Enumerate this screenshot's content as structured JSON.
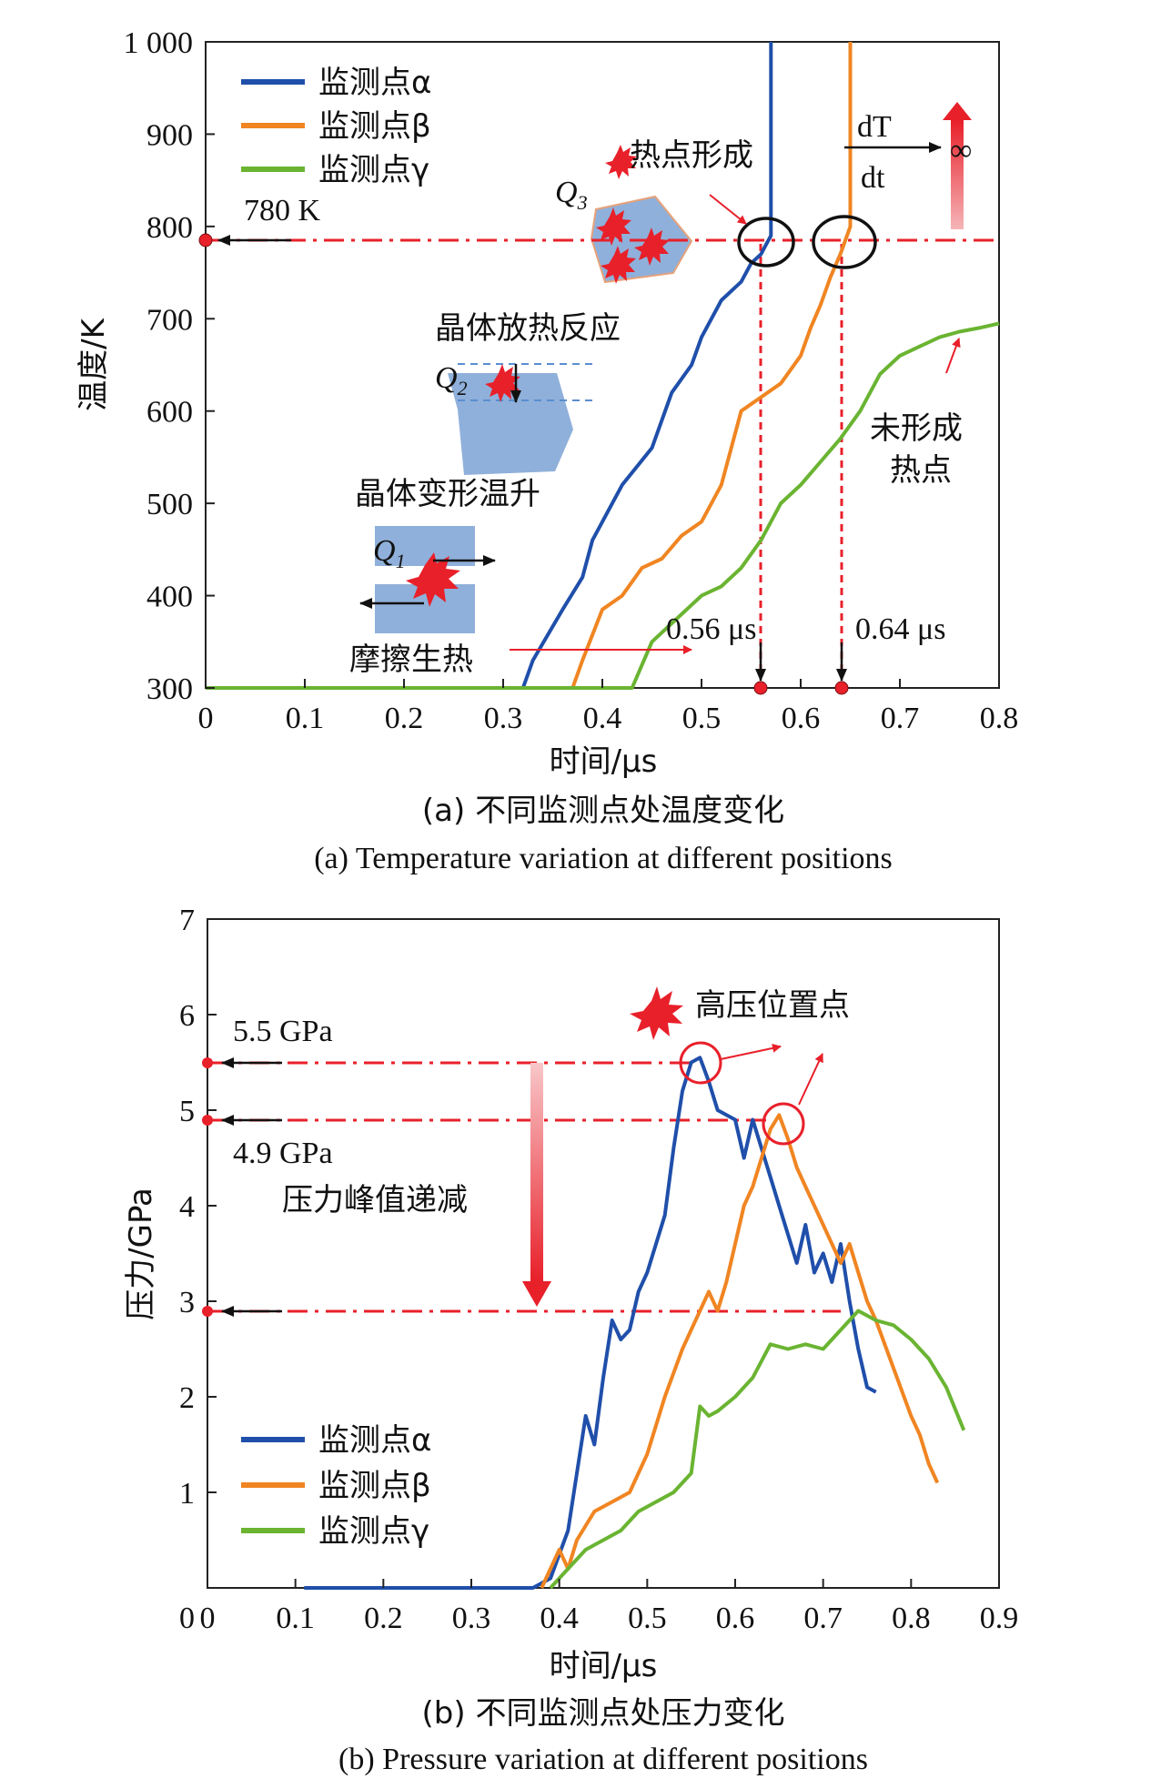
{
  "chart_data": [
    {
      "type": "line",
      "caption_cn": "(a) 不同监测点处温度变化",
      "caption_en": "(a) Temperature variation at different positions",
      "xlabel": "时间/μs",
      "ylabel": "温度/K",
      "xlim": [
        0,
        0.8
      ],
      "ylim": [
        300,
        1000
      ],
      "x_ticks": [
        "0",
        "0.1",
        "0.2",
        "0.3",
        "0.4",
        "0.5",
        "0.6",
        "0.7",
        "0.8"
      ],
      "y_ticks": [
        "300",
        "400",
        "500",
        "600",
        "700",
        "800",
        "900",
        "1 000"
      ],
      "legend_position": "top-left",
      "series": [
        {
          "name": "监测点α",
          "color": "#1f4faa",
          "x": [
            0,
            0.32,
            0.33,
            0.36,
            0.38,
            0.39,
            0.4,
            0.42,
            0.45,
            0.47,
            0.49,
            0.5,
            0.51,
            0.52,
            0.54,
            0.55,
            0.56,
            0.565,
            0.57,
            0.57
          ],
          "y": [
            300,
            300,
            330,
            385,
            420,
            460,
            480,
            520,
            560,
            620,
            650,
            680,
            700,
            720,
            740,
            760,
            770,
            780,
            790,
            1000
          ]
        },
        {
          "name": "监测点β",
          "color": "#f08522",
          "x": [
            0,
            0.37,
            0.38,
            0.4,
            0.42,
            0.44,
            0.46,
            0.48,
            0.5,
            0.52,
            0.54,
            0.56,
            0.58,
            0.6,
            0.61,
            0.62,
            0.63,
            0.64,
            0.645,
            0.65,
            0.65
          ],
          "y": [
            300,
            300,
            330,
            385,
            400,
            430,
            440,
            465,
            480,
            520,
            600,
            615,
            630,
            660,
            690,
            715,
            745,
            770,
            785,
            800,
            1000
          ]
        },
        {
          "name": "监测点γ",
          "color": "#6ab432",
          "x": [
            0,
            0.43,
            0.45,
            0.48,
            0.5,
            0.52,
            0.54,
            0.56,
            0.58,
            0.6,
            0.62,
            0.64,
            0.66,
            0.68,
            0.7,
            0.72,
            0.74,
            0.76,
            0.78,
            0.8
          ],
          "y": [
            300,
            300,
            350,
            380,
            400,
            410,
            430,
            460,
            500,
            520,
            545,
            570,
            600,
            640,
            660,
            670,
            680,
            686,
            690,
            695
          ]
        }
      ],
      "annotations": {
        "threshold": "780 K",
        "t_alpha": "0.56 μs",
        "t_beta": "0.64 μs",
        "hotspot": "热点形成",
        "no_hotspot_1": "未形成",
        "no_hotspot_2": "热点",
        "crystal_reaction": "晶体放热反应",
        "crystal_deform": "晶体变形温升",
        "friction": "摩擦生热",
        "q1": "Q",
        "q1_sub": "1",
        "q2": "Q",
        "q2_sub": "2",
        "q3": "Q",
        "q3_sub": "3",
        "dT": "dT",
        "dt": "dt",
        "infinity": "∞"
      }
    },
    {
      "type": "line",
      "caption_cn": "(b) 不同监测点处压力变化",
      "caption_en": "(b) Pressure variation at different positions",
      "xlabel": "时间/μs",
      "ylabel": "压力/GPa",
      "xlim": [
        0,
        0.9
      ],
      "ylim": [
        0,
        7
      ],
      "x_ticks": [
        "0",
        "0.1",
        "0.2",
        "0.3",
        "0.4",
        "0.5",
        "0.6",
        "0.7",
        "0.8",
        "0.9"
      ],
      "y_ticks": [
        "1",
        "2",
        "3",
        "4",
        "5",
        "6",
        "7"
      ],
      "legend_position": "bottom-left",
      "series": [
        {
          "name": "监测点α",
          "color": "#1f4faa",
          "x": [
            0.11,
            0.37,
            0.39,
            0.41,
            0.42,
            0.43,
            0.44,
            0.45,
            0.46,
            0.47,
            0.48,
            0.49,
            0.5,
            0.51,
            0.52,
            0.53,
            0.54,
            0.55,
            0.56,
            0.57,
            0.58,
            0.6,
            0.61,
            0.62,
            0.64,
            0.65,
            0.66,
            0.67,
            0.68,
            0.69,
            0.7,
            0.71,
            0.72,
            0.73,
            0.74,
            0.75,
            0.76
          ],
          "y": [
            0,
            0,
            0.1,
            0.6,
            1.2,
            1.8,
            1.5,
            2.2,
            2.8,
            2.6,
            2.7,
            3.1,
            3.3,
            3.6,
            3.9,
            4.6,
            5.2,
            5.5,
            5.55,
            5.3,
            5.0,
            4.9,
            4.5,
            4.9,
            4.3,
            4.0,
            3.7,
            3.4,
            3.8,
            3.3,
            3.5,
            3.2,
            3.6,
            3.0,
            2.5,
            2.1,
            2.05
          ]
        },
        {
          "name": "监测点β",
          "color": "#f08522",
          "x": [
            0.38,
            0.4,
            0.41,
            0.42,
            0.44,
            0.46,
            0.48,
            0.5,
            0.52,
            0.54,
            0.56,
            0.57,
            0.58,
            0.59,
            0.6,
            0.61,
            0.62,
            0.63,
            0.64,
            0.65,
            0.66,
            0.67,
            0.68,
            0.7,
            0.72,
            0.73,
            0.74,
            0.75,
            0.76,
            0.78,
            0.8,
            0.81,
            0.82,
            0.83
          ],
          "y": [
            0,
            0.4,
            0.2,
            0.5,
            0.8,
            0.9,
            1.0,
            1.4,
            2.0,
            2.5,
            2.9,
            3.1,
            2.9,
            3.2,
            3.6,
            4.0,
            4.2,
            4.5,
            4.8,
            4.95,
            4.7,
            4.4,
            4.2,
            3.8,
            3.4,
            3.6,
            3.3,
            3.0,
            2.8,
            2.3,
            1.8,
            1.6,
            1.3,
            1.1
          ]
        },
        {
          "name": "监测点γ",
          "color": "#6ab432",
          "x": [
            0.39,
            0.41,
            0.43,
            0.45,
            0.47,
            0.49,
            0.51,
            0.53,
            0.55,
            0.56,
            0.57,
            0.58,
            0.6,
            0.62,
            0.64,
            0.66,
            0.68,
            0.7,
            0.72,
            0.74,
            0.76,
            0.78,
            0.8,
            0.82,
            0.84,
            0.86
          ],
          "y": [
            0,
            0.2,
            0.4,
            0.5,
            0.6,
            0.8,
            0.9,
            1.0,
            1.2,
            1.9,
            1.8,
            1.85,
            2.0,
            2.2,
            2.55,
            2.5,
            2.55,
            2.5,
            2.7,
            2.9,
            2.8,
            2.75,
            2.6,
            2.4,
            2.1,
            1.65
          ]
        }
      ],
      "annotations": {
        "p1": "5.5 GPa",
        "p2": "4.9 GPa",
        "decay": "压力峰值递减",
        "high": "高压位置点"
      }
    }
  ]
}
